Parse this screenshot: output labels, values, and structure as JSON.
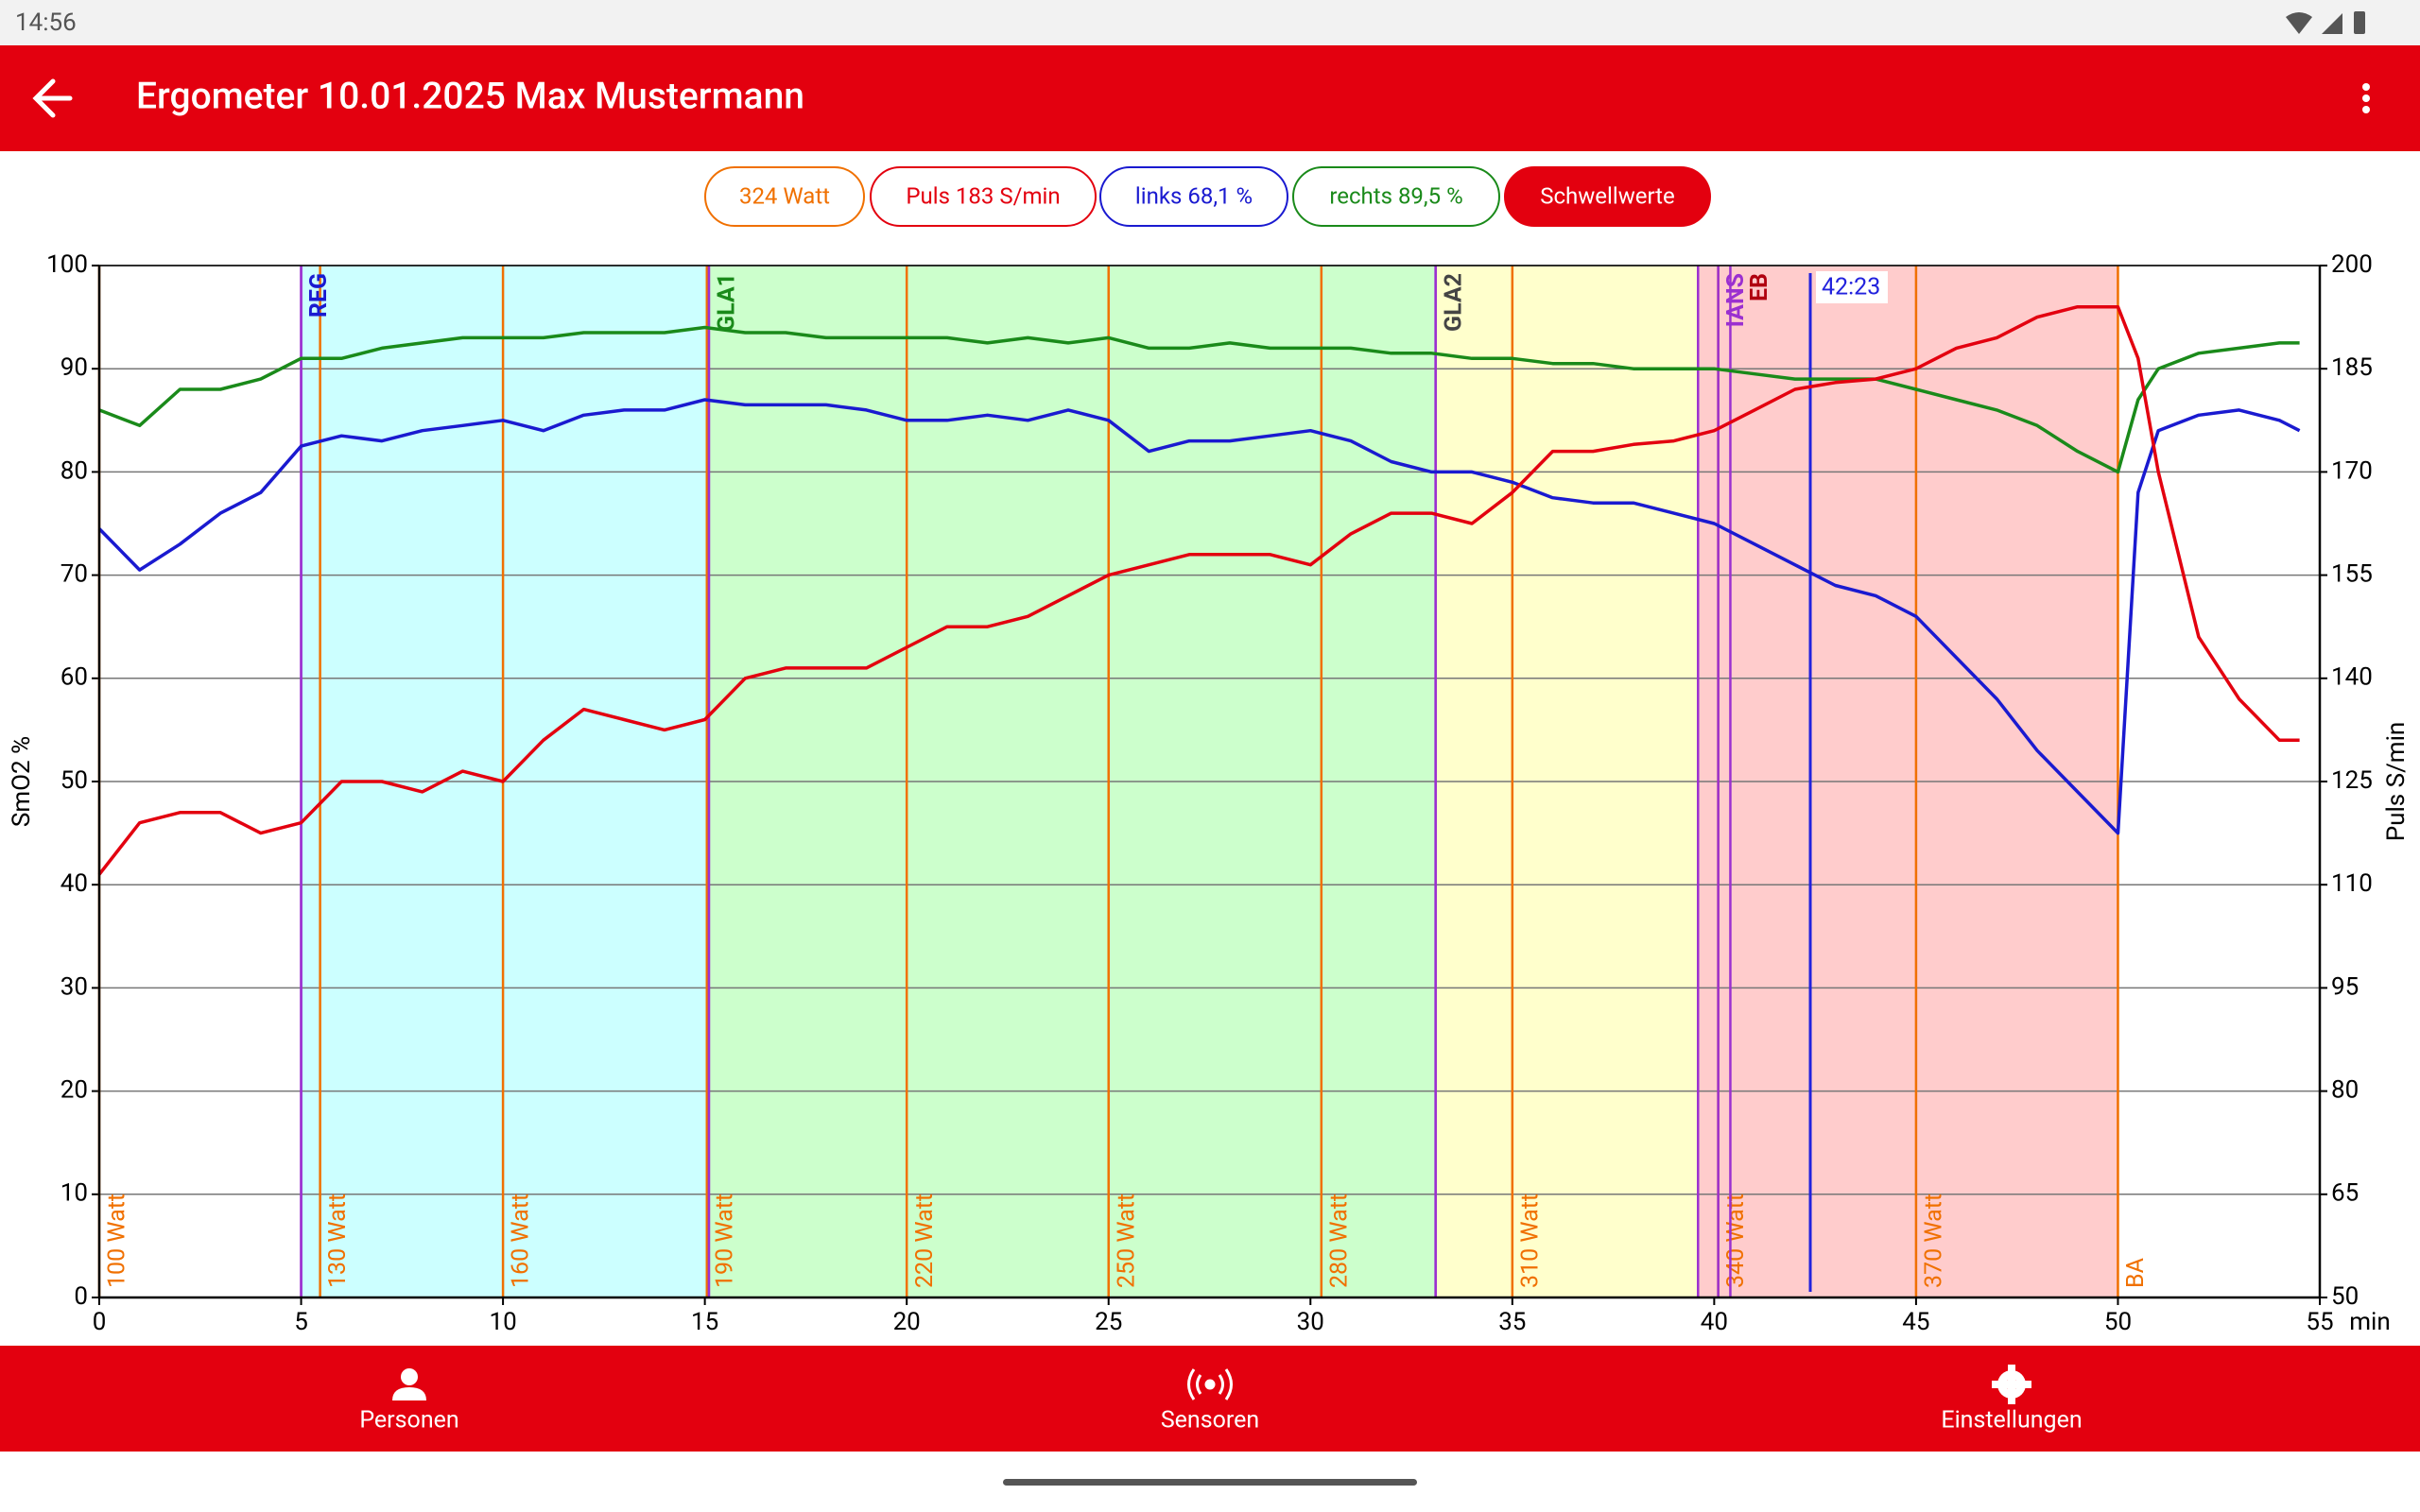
{
  "status_bar": {
    "time": "14:56"
  },
  "app_bar": {
    "title": "Ergometer 10.01.2025 Max Mustermann"
  },
  "chips": [
    {
      "label": "324 Watt",
      "color": "#f07000",
      "selected": false
    },
    {
      "label": "Puls 183 S/min",
      "color": "#e3000f",
      "selected": false
    },
    {
      "label": "links 68,1 %",
      "color": "#1a1ad0",
      "selected": false
    },
    {
      "label": "rechts 89,5 %",
      "color": "#1a8a1a",
      "selected": false
    },
    {
      "label": "Schwellwerte",
      "color": "#e3000f",
      "selected": true
    }
  ],
  "chart_data": {
    "type": "line",
    "xlabel": "min",
    "ylabel": "SmO2 %",
    "y2label": "Puls S/min",
    "x": [
      0,
      1,
      2,
      3,
      4,
      5,
      6,
      7,
      8,
      9,
      10,
      11,
      12,
      13,
      14,
      15,
      16,
      17,
      18,
      19,
      20,
      21,
      22,
      23,
      24,
      25,
      26,
      27,
      28,
      29,
      30,
      31,
      32,
      33,
      34,
      35,
      36,
      37,
      38,
      39,
      40,
      41,
      42,
      43,
      44,
      45,
      46,
      47,
      48,
      49,
      50,
      50.5,
      51,
      52,
      53,
      54,
      54.5
    ],
    "xlim": [
      0,
      55
    ],
    "xticks": [
      0,
      5,
      10,
      15,
      20,
      25,
      30,
      35,
      40,
      45,
      50,
      55
    ],
    "ylim": [
      0,
      100
    ],
    "yticks": [
      0,
      10,
      20,
      30,
      40,
      50,
      60,
      70,
      80,
      90,
      100
    ],
    "y2lim": [
      50,
      200
    ],
    "y2ticks": [
      50,
      65,
      80,
      95,
      110,
      125,
      140,
      155,
      170,
      185,
      200
    ],
    "grid": true,
    "series": [
      {
        "name": "links",
        "color": "#1a1ad0",
        "values": [
          74.5,
          70.5,
          73,
          76,
          78,
          82.5,
          83.5,
          83,
          84,
          84.5,
          85,
          84,
          85.5,
          86,
          86,
          87,
          86.5,
          86.5,
          86.5,
          86,
          85,
          85,
          85.5,
          85,
          86,
          85,
          82,
          83,
          83,
          83.5,
          84,
          83,
          81,
          80,
          80,
          79,
          77.5,
          77,
          77,
          76,
          75,
          73,
          71,
          69,
          68,
          66,
          62,
          58,
          53,
          49,
          45,
          78,
          84,
          85.5,
          86,
          85,
          84
        ]
      },
      {
        "name": "rechts",
        "color": "#1a8a1a",
        "values": [
          86,
          84.5,
          88,
          88,
          89,
          91,
          91,
          92,
          92.5,
          93,
          93,
          93,
          93.5,
          93.5,
          93.5,
          94,
          93.5,
          93.5,
          93,
          93,
          93,
          93,
          92.5,
          93,
          92.5,
          93,
          92,
          92,
          92.5,
          92,
          92,
          92,
          91.5,
          91.5,
          91,
          91,
          90.5,
          90.5,
          90,
          90,
          90,
          89.5,
          89,
          89,
          89,
          88,
          87,
          86,
          84.5,
          82,
          80,
          87,
          90,
          91.5,
          92,
          92.5,
          92.5
        ]
      },
      {
        "name": "Puls",
        "color": "#e3000f",
        "axis": "y2",
        "values": [
          111.5,
          119,
          120.5,
          120.5,
          117.5,
          119,
          125,
          125,
          123.5,
          126.5,
          125,
          131,
          135.5,
          134,
          132.5,
          134,
          140,
          141.5,
          141.5,
          141.5,
          144.5,
          147.5,
          147.5,
          149,
          152,
          155,
          156.5,
          158,
          158,
          158,
          156.5,
          161,
          164,
          164,
          162.5,
          167,
          173,
          173,
          174,
          174.5,
          176,
          179,
          182,
          183,
          183.5,
          185,
          188,
          189.5,
          192.5,
          194,
          194,
          186.5,
          170,
          146,
          137,
          131,
          131
        ]
      }
    ],
    "zones": [
      {
        "start": 5,
        "end": 15.1,
        "color": "#ccffff"
      },
      {
        "start": 15.1,
        "end": 33.1,
        "color": "#ccffcc"
      },
      {
        "start": 33.1,
        "end": 39.6,
        "color": "#ffffcc"
      },
      {
        "start": 39.6,
        "end": 50,
        "color": "#ffcccc"
      }
    ],
    "power_markers": {
      "color": "#f07000",
      "items": [
        {
          "x": 0,
          "label": "100 Watt"
        },
        {
          "x": 5.47,
          "label": "130 Watt"
        },
        {
          "x": 10,
          "label": "160 Watt"
        },
        {
          "x": 15.05,
          "label": "190 Watt"
        },
        {
          "x": 20,
          "label": "220 Watt"
        },
        {
          "x": 25,
          "label": "250 Watt"
        },
        {
          "x": 30.27,
          "label": "280 Watt"
        },
        {
          "x": 35,
          "label": "310 Watt"
        },
        {
          "x": 40.1,
          "label": "340 Watt"
        },
        {
          "x": 45,
          "label": "370 Watt"
        },
        {
          "x": 50,
          "label": "BA"
        }
      ]
    },
    "thresholds": {
      "color": "#9b30d0",
      "items": [
        {
          "x": 5,
          "label": "REG",
          "color": "#1a1ad0"
        },
        {
          "x": 15.1,
          "label": "GLA1",
          "color": "#1a8a1a"
        },
        {
          "x": 33.1,
          "label": "GLA2",
          "color": "#444444"
        },
        {
          "x": 40.1,
          "label": "IANS",
          "color": "#9b30d0"
        },
        {
          "x": 40.4,
          "label": "EB",
          "color": "#b00010"
        }
      ]
    },
    "cursor": {
      "x": 42.38,
      "label": "42:23",
      "color": "#2222dd"
    }
  },
  "nav": [
    "Personen",
    "Sensoren",
    "Einstellungen"
  ]
}
